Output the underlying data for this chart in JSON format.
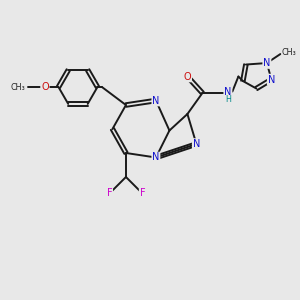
{
  "bg": "#e8e8e8",
  "bond_color": "#1a1a1a",
  "bw": 1.4,
  "dbo": 0.06,
  "atom_colors": {
    "N": "#1010cc",
    "O": "#cc1010",
    "F": "#cc00cc",
    "H": "#008888"
  },
  "fs": 7.0,
  "fs2": 5.8
}
